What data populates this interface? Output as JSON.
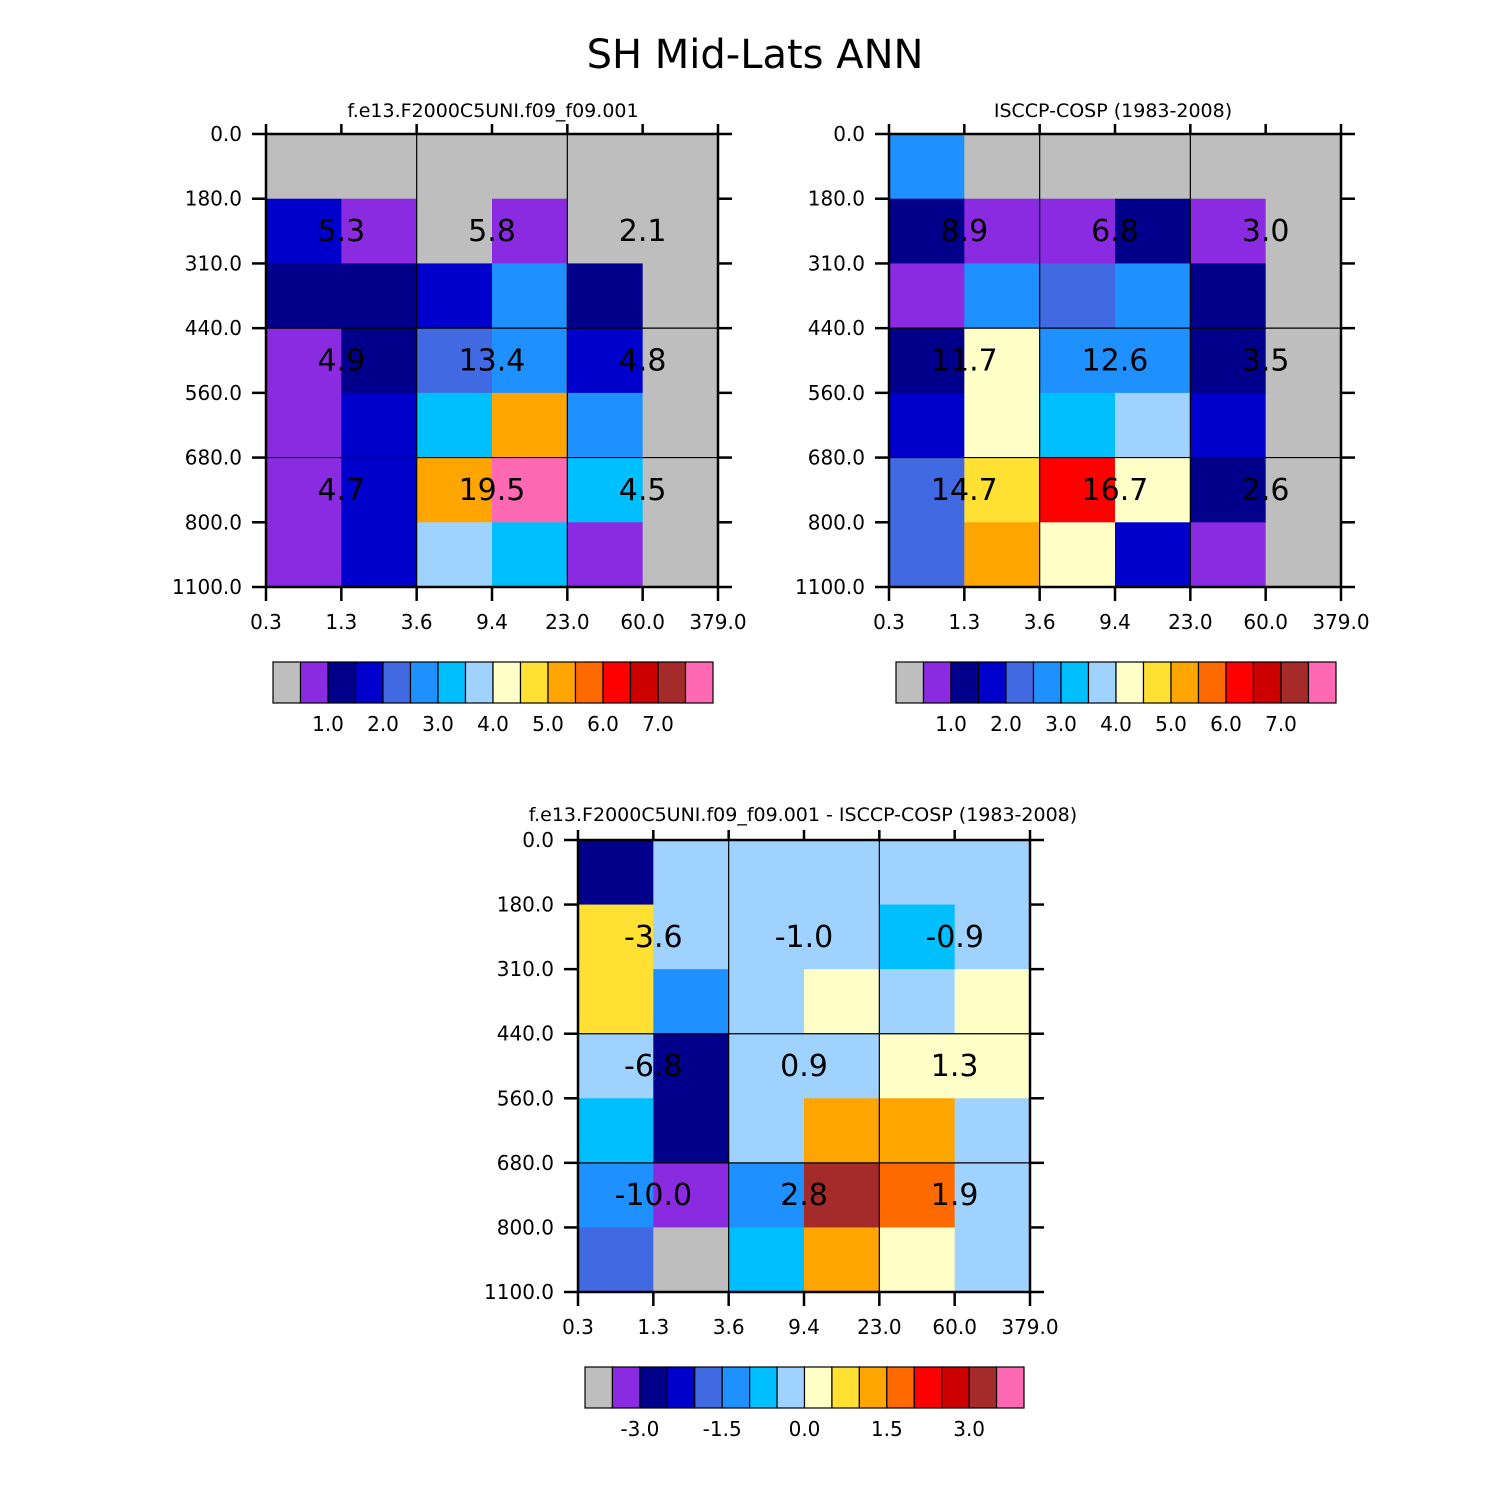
{
  "title": "SH Mid-Lats ANN",
  "palette": {
    "c0": "#BEBEBE",
    "c1": "#8A2BE2",
    "c2": "#00008B",
    "c3": "#0000CD",
    "c4": "#4169E1",
    "c5": "#1E90FF",
    "c6": "#00BFFF",
    "c7": "#A0D2FF",
    "c8": "#FFFFC8",
    "c9": "#FFE033",
    "c10": "#FFA500",
    "c11": "#FF6A00",
    "c12": "#FF0000",
    "c13": "#CD0000",
    "c14": "#A52A2A",
    "c15": "#FF69B4"
  },
  "chart_data": [
    {
      "type": "heatmap",
      "title": "f.e13.F2000C5UNI.f09_f09.001",
      "xticks": [
        "0.3",
        "1.3",
        "3.6",
        "9.4",
        "23.0",
        "60.0",
        "379.0"
      ],
      "yticks": [
        "0.0",
        "180.0",
        "310.0",
        "440.0",
        "560.0",
        "680.0",
        "800.0",
        "1100.0"
      ],
      "cells": [
        [
          "c0",
          "c0",
          "c0",
          "c0",
          "c0",
          "c0"
        ],
        [
          "c3",
          "c1",
          "c0",
          "c1",
          "c0",
          "c0"
        ],
        [
          "c2",
          "c2",
          "c3",
          "c5",
          "c2",
          "c0"
        ],
        [
          "c1",
          "c2",
          "c4",
          "c5",
          "c3",
          "c0"
        ],
        [
          "c1",
          "c3",
          "c6",
          "c10",
          "c5",
          "c0"
        ],
        [
          "c1",
          "c3",
          "c10",
          "c15",
          "c6",
          "c0"
        ],
        [
          "c1",
          "c3",
          "c7",
          "c6",
          "c1",
          "c0"
        ]
      ],
      "annotations": [
        [
          "5.3",
          "5.8",
          "2.1"
        ],
        [
          "4.9",
          "13.4",
          "4.8"
        ],
        [
          "4.7",
          "19.5",
          "4.5"
        ]
      ],
      "colorbar_labels": [
        "1.0",
        "2.0",
        "3.0",
        "4.0",
        "5.0",
        "6.0",
        "7.0"
      ]
    },
    {
      "type": "heatmap",
      "title": "ISCCP-COSP (1983-2008)",
      "xticks": [
        "0.3",
        "1.3",
        "3.6",
        "9.4",
        "23.0",
        "60.0",
        "379.0"
      ],
      "yticks": [
        "0.0",
        "180.0",
        "310.0",
        "440.0",
        "560.0",
        "680.0",
        "800.0",
        "1100.0"
      ],
      "cells": [
        [
          "c5",
          "c0",
          "c0",
          "c0",
          "c0",
          "c0"
        ],
        [
          "c2",
          "c1",
          "c1",
          "c2",
          "c1",
          "c0"
        ],
        [
          "c1",
          "c5",
          "c4",
          "c5",
          "c2",
          "c0"
        ],
        [
          "c2",
          "c8",
          "c5",
          "c5",
          "c2",
          "c0"
        ],
        [
          "c3",
          "c8",
          "c6",
          "c7",
          "c3",
          "c0"
        ],
        [
          "c4",
          "c9",
          "c12",
          "c8",
          "c2",
          "c0"
        ],
        [
          "c4",
          "c10",
          "c8",
          "c3",
          "c1",
          "c0"
        ]
      ],
      "annotations": [
        [
          "8.9",
          "6.8",
          "3.0"
        ],
        [
          "11.7",
          "12.6",
          "3.5"
        ],
        [
          "14.7",
          "16.7",
          "2.6"
        ]
      ],
      "colorbar_labels": [
        "1.0",
        "2.0",
        "3.0",
        "4.0",
        "5.0",
        "6.0",
        "7.0"
      ]
    },
    {
      "type": "heatmap",
      "title": "f.e13.F2000C5UNI.f09_f09.001 - ISCCP-COSP (1983-2008)",
      "xticks": [
        "0.3",
        "1.3",
        "3.6",
        "9.4",
        "23.0",
        "60.0",
        "379.0"
      ],
      "yticks": [
        "0.0",
        "180.0",
        "310.0",
        "440.0",
        "560.0",
        "680.0",
        "800.0",
        "1100.0"
      ],
      "cells": [
        [
          "c2",
          "c7",
          "c7",
          "c7",
          "c7",
          "c7"
        ],
        [
          "c9",
          "c7",
          "c7",
          "c7",
          "c6",
          "c7"
        ],
        [
          "c9",
          "c5",
          "c7",
          "c8",
          "c7",
          "c8"
        ],
        [
          "c7",
          "c2",
          "c7",
          "c7",
          "c8",
          "c8"
        ],
        [
          "c6",
          "c2",
          "c7",
          "c10",
          "c10",
          "c7"
        ],
        [
          "c5",
          "c1",
          "c5",
          "c14",
          "c11",
          "c7"
        ],
        [
          "c4",
          "c0",
          "c6",
          "c10",
          "c8",
          "c7"
        ]
      ],
      "annotations": [
        [
          "-3.6",
          "-1.0",
          "-0.9"
        ],
        [
          "-6.8",
          "0.9",
          "1.3"
        ],
        [
          "-10.0",
          "2.8",
          "1.9"
        ]
      ],
      "colorbar_labels": [
        "-3.0",
        "-1.5",
        "0.0",
        "1.5",
        "3.0"
      ]
    }
  ]
}
